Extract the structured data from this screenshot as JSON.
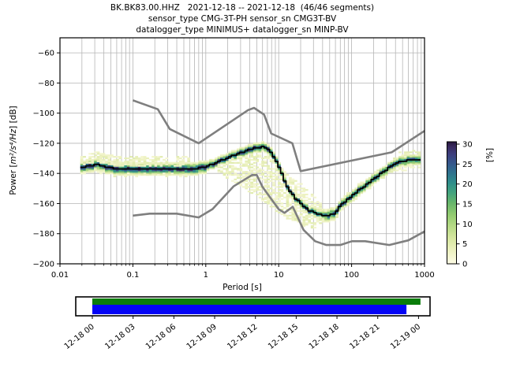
{
  "chart_data": {
    "type": "heatmap",
    "title": "BK.BK83.00.HHZ   2021-12-18 -- 2021-12-18  (46/46 segments)",
    "subtitle_sensor": "sensor_type CMG-3T-PH sensor_sn CMG3T-BV",
    "subtitle_datalogger": "datalogger_type MINIMUS+ datalogger_sn MINP-BV",
    "xlabel": "Period [s]",
    "ylabel_prefix": "Power [",
    "ylabel_math": "m²/s⁴/Hz",
    "ylabel_suffix": "] [dB]",
    "xscale": "log",
    "xlim": [
      0.01,
      1000
    ],
    "ylim": [
      -200,
      -50
    ],
    "x_ticks": [
      0.01,
      0.1,
      1,
      10,
      100,
      1000
    ],
    "x_tick_labels": [
      "0.01",
      "0.1",
      "1",
      "10",
      "100",
      "1000"
    ],
    "y_ticks": [
      -60,
      -80,
      -100,
      -120,
      -140,
      -160,
      -180,
      -200
    ],
    "grid": true,
    "grid_color": "#b5b5b5",
    "colorbar": {
      "label": "[%]",
      "min": 0,
      "max": 30,
      "ticks": [
        0,
        5,
        10,
        15,
        20,
        25,
        30
      ],
      "colormap_stops": [
        [
          0.0,
          "#fdfce6"
        ],
        [
          0.1,
          "#eef2c3"
        ],
        [
          0.2,
          "#d9e8a3"
        ],
        [
          0.3,
          "#b9db88"
        ],
        [
          0.4,
          "#93cb70"
        ],
        [
          0.5,
          "#67b56b"
        ],
        [
          0.58,
          "#44a47e"
        ],
        [
          0.66,
          "#2f8f8a"
        ],
        [
          0.74,
          "#2f748e"
        ],
        [
          0.82,
          "#35588c"
        ],
        [
          0.9,
          "#3d3e7d"
        ],
        [
          0.96,
          "#392a5e"
        ],
        [
          1.0,
          "#27173c"
        ]
      ]
    },
    "mode_curve_color": "#000000",
    "mode_curve": [
      [
        0.019,
        -136.5
      ],
      [
        0.023,
        -135.6
      ],
      [
        0.027,
        -134.6
      ],
      [
        0.032,
        -134.2
      ],
      [
        0.038,
        -135.0
      ],
      [
        0.045,
        -136.0
      ],
      [
        0.055,
        -136.6
      ],
      [
        0.07,
        -137.0
      ],
      [
        0.09,
        -137.3
      ],
      [
        0.11,
        -136.9
      ],
      [
        0.14,
        -136.6
      ],
      [
        0.18,
        -137.0
      ],
      [
        0.25,
        -137.4
      ],
      [
        0.35,
        -137.2
      ],
      [
        0.5,
        -137.4
      ],
      [
        0.65,
        -137.1
      ],
      [
        0.8,
        -136.6
      ],
      [
        1.0,
        -135.6
      ],
      [
        1.3,
        -133.6
      ],
      [
        1.7,
        -131.2
      ],
      [
        2.2,
        -128.8
      ],
      [
        3.0,
        -126.2
      ],
      [
        4.0,
        -124.2
      ],
      [
        5.0,
        -123.0
      ],
      [
        6.0,
        -122.4
      ],
      [
        7.0,
        -123.2
      ],
      [
        8.0,
        -126.0
      ],
      [
        9.0,
        -130.5
      ],
      [
        10.5,
        -137.0
      ],
      [
        12,
        -145.0
      ],
      [
        14,
        -151.0
      ],
      [
        17,
        -156.5
      ],
      [
        21,
        -161.0
      ],
      [
        26,
        -164.5
      ],
      [
        32,
        -166.5
      ],
      [
        40,
        -167.5
      ],
      [
        50,
        -167.6
      ],
      [
        60,
        -166.5
      ],
      [
        70,
        -161.0
      ],
      [
        85,
        -158.0
      ],
      [
        100,
        -155.0
      ],
      [
        120,
        -152.0
      ],
      [
        145,
        -149.5
      ],
      [
        175,
        -146.0
      ],
      [
        210,
        -143.0
      ],
      [
        255,
        -140.0
      ],
      [
        310,
        -137.0
      ],
      [
        380,
        -134.5
      ],
      [
        460,
        -132.3
      ],
      [
        560,
        -131.4
      ],
      [
        680,
        -131.3
      ],
      [
        800,
        -131.5
      ]
    ],
    "noise_models": {
      "color": "#7f7f7f",
      "low": [
        [
          0.1,
          -168.0
        ],
        [
          0.17,
          -166.7
        ],
        [
          0.4,
          -166.7
        ],
        [
          0.8,
          -169.2
        ],
        [
          1.24,
          -163.7
        ],
        [
          2.4,
          -148.6
        ],
        [
          4.3,
          -141.1
        ],
        [
          5.0,
          -141.1
        ],
        [
          6.0,
          -149.0
        ],
        [
          10.0,
          -163.8
        ],
        [
          12.0,
          -166.2
        ],
        [
          15.6,
          -162.1
        ],
        [
          21.9,
          -177.5
        ],
        [
          31.6,
          -185.0
        ],
        [
          45.0,
          -187.5
        ],
        [
          70.0,
          -187.5
        ],
        [
          101.0,
          -185.0
        ],
        [
          154.0,
          -185.0
        ],
        [
          328.0,
          -187.5
        ],
        [
          600.0,
          -184.4
        ],
        [
          1000,
          -178.5
        ]
      ],
      "high": [
        [
          0.1,
          -91.5
        ],
        [
          0.22,
          -97.4
        ],
        [
          0.32,
          -110.5
        ],
        [
          0.8,
          -120.0
        ],
        [
          3.8,
          -98.0
        ],
        [
          4.6,
          -96.5
        ],
        [
          6.3,
          -101.0
        ],
        [
          7.9,
          -113.5
        ],
        [
          15.4,
          -120.0
        ],
        [
          20.0,
          -138.5
        ],
        [
          354.8,
          -126.0
        ],
        [
          1000,
          -111.8
        ]
      ]
    },
    "histogram": {
      "period_min": 0.019,
      "period_max": 820,
      "period_step_octaves": 0.125,
      "db_bin_width": 1,
      "fan_top": [
        [
          1.5,
          -132
        ],
        [
          4,
          -128
        ],
        [
          8,
          -128
        ],
        [
          12,
          -139
        ],
        [
          20,
          -147
        ],
        [
          30,
          -155
        ],
        [
          50,
          -165
        ]
      ],
      "fan_bottom": [
        [
          1.5,
          -140
        ],
        [
          3,
          -148
        ],
        [
          5,
          -155
        ],
        [
          8,
          -162
        ],
        [
          12,
          -169
        ],
        [
          20,
          -174
        ],
        [
          30,
          -176
        ],
        [
          40,
          -173
        ],
        [
          50,
          -170
        ]
      ]
    }
  },
  "timeline": {
    "labels": [
      "12-18 00",
      "12-18 03",
      "12-18 06",
      "12-18 09",
      "12-18 12",
      "12-18 15",
      "12-18 18",
      "12-18 21",
      "12-19 00"
    ],
    "green_bar_color": "#0a7d0a",
    "blue_bar_color": "#0404f5",
    "green_start_frac": 0.0,
    "green_end_frac": 1.006,
    "blue_start_frac": 0.0,
    "blue_end_frac": 0.963
  }
}
